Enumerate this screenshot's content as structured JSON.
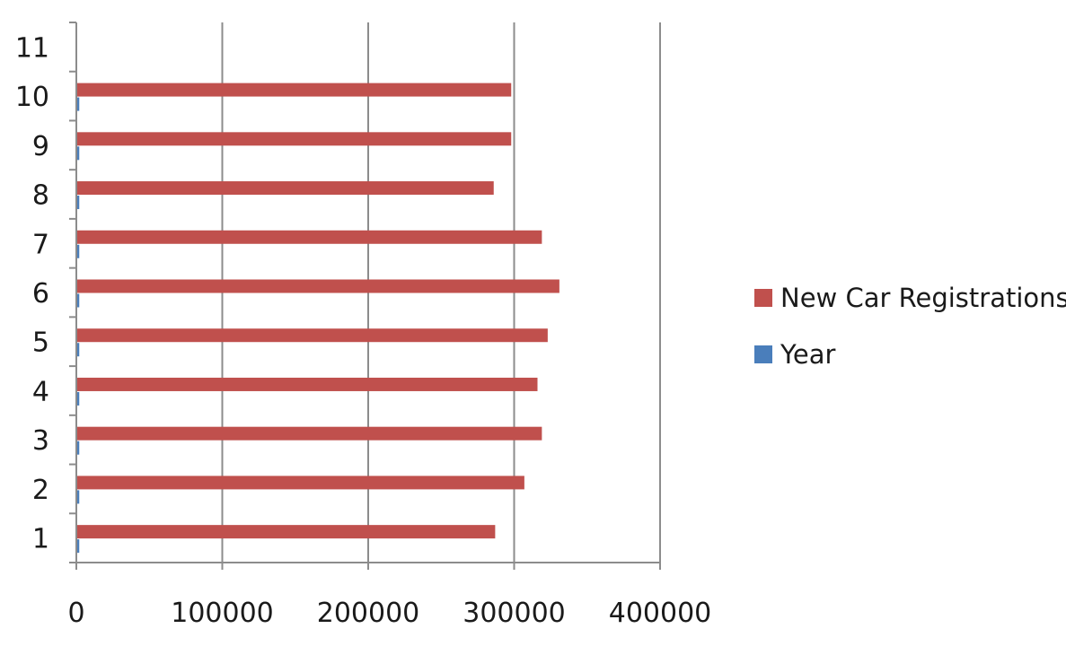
{
  "chart_data": {
    "type": "bar",
    "orientation": "horizontal",
    "categories": [
      "1",
      "2",
      "3",
      "4",
      "5",
      "6",
      "7",
      "8",
      "9",
      "10",
      "11"
    ],
    "series": [
      {
        "name": "Year",
        "color": "#4a7ebb",
        "values": [
          2001,
          2002,
          2003,
          2004,
          2005,
          2006,
          2007,
          2008,
          2009,
          2010,
          null
        ]
      },
      {
        "name": "New Car Registrations",
        "color": "#c0504d",
        "values": [
          287000,
          307000,
          319000,
          316000,
          323000,
          331000,
          319000,
          286000,
          298000,
          298000,
          null
        ]
      }
    ],
    "xlim": [
      0,
      400000
    ],
    "x_ticks": [
      "0",
      "100000",
      "200000",
      "300000",
      "400000"
    ],
    "x_tick_values": [
      0,
      100000,
      200000,
      300000,
      400000
    ],
    "grid": "vertical",
    "legend_position": "right"
  }
}
